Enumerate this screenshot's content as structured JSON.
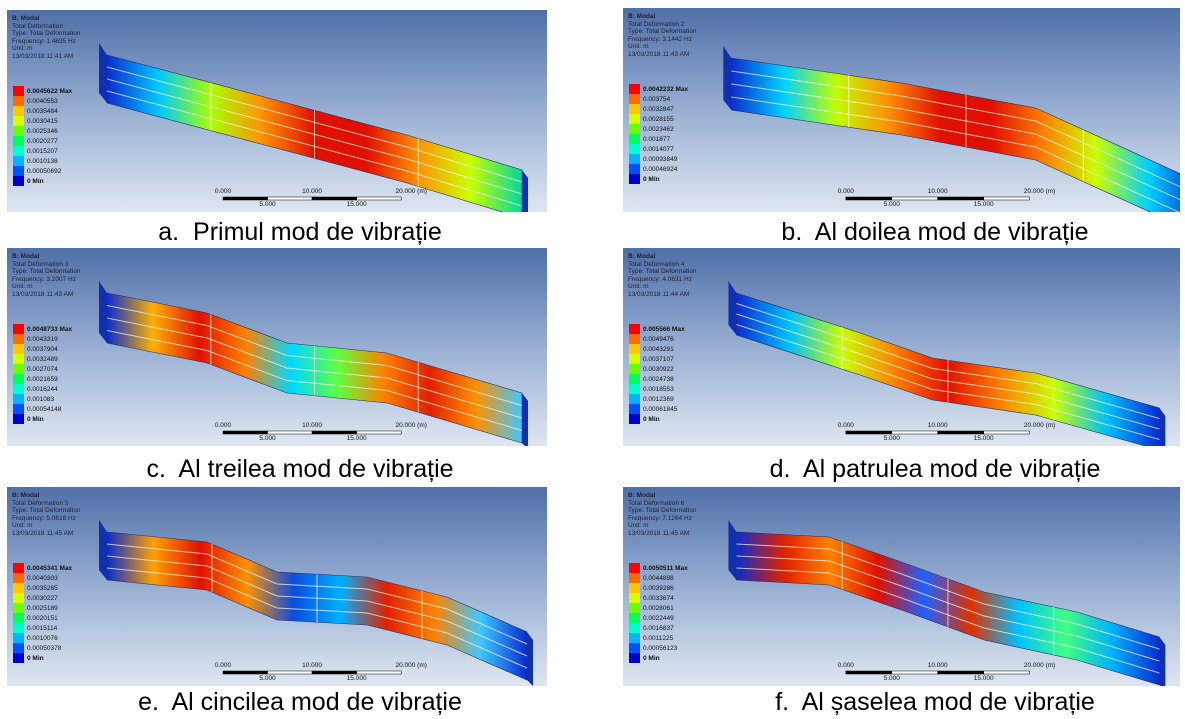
{
  "panels": [
    {
      "title": "B: Modal",
      "lines": [
        "Total Deformation",
        "Type: Total Deformation",
        "Frequency: 1.4695 Hz",
        "Unit: m",
        "13/03/2018 11:41 AM"
      ],
      "legend": [
        "0.0045622 Max",
        "0.0040553",
        "0.0035484",
        "0.0030415",
        "0.0025346",
        "0.0020277",
        "0.0015207",
        "0.0010138",
        "0.00050692",
        "0 Min"
      ],
      "scale_top": [
        "0.000",
        "10.000",
        "20.000 (m)"
      ],
      "scale_bottom": [
        "5.000",
        "15.000"
      ],
      "caption": "a.  Primul mod de vibrație"
    },
    {
      "title": "B: Modal",
      "lines": [
        "Total Deformation 2",
        "Type: Total Deformation",
        "Frequency: 3.1442 Hz",
        "Unit: m",
        "13/03/2018 11:43 AM"
      ],
      "legend": [
        "0.0042232 Max",
        "0.003754",
        "0.0032847",
        "0.0028155",
        "0.0023462",
        "0.001877",
        "0.0014077",
        "0.00093849",
        "0.00046924",
        "0 Min"
      ],
      "scale_top": [
        "0.000",
        "10.000",
        "20.000 (m)"
      ],
      "scale_bottom": [
        "5.000",
        "15.000"
      ],
      "caption": "b.  Al doilea mod de vibrație"
    },
    {
      "title": "B: Modal",
      "lines": [
        "Total Deformation 3",
        "Type: Total Deformation",
        "Frequency: 3.2007 Hz",
        "Unit: m",
        "13/03/2018 11:43 AM"
      ],
      "legend": [
        "0.0048733 Max",
        "0.0043319",
        "0.0037904",
        "0.0032489",
        "0.0027074",
        "0.0021659",
        "0.0016244",
        "0.001083",
        "0.00054148",
        "0 Min"
      ],
      "scale_top": [
        "0.000",
        "10.000",
        "20.000 (m)"
      ],
      "scale_bottom": [
        "5.000",
        "15.000"
      ],
      "caption": "c.  Al treilea mod de vibrație"
    },
    {
      "title": "B: Modal",
      "lines": [
        "Total Deformation 4",
        "Type: Total Deformation",
        "Frequency: 4.0631 Hz",
        "Unit: m",
        "13/03/2018 11:44 AM"
      ],
      "legend": [
        "0.005566 Max",
        "0.0049476",
        "0.0043291",
        "0.0037107",
        "0.0030922",
        "0.0024738",
        "0.0018553",
        "0.0012369",
        "0.00061845",
        "0 Min"
      ],
      "scale_top": [
        "0.000",
        "10.000",
        "20.000 (m)"
      ],
      "scale_bottom": [
        "5.000",
        "15.000"
      ],
      "caption": "d.  Al patrulea mod de vibrație"
    },
    {
      "title": "B: Modal",
      "lines": [
        "Total Deformation 5",
        "Type: Total Deformation",
        "Frequency: 5.0618 Hz",
        "Unit: m",
        "13/03/2018 11:45 AM"
      ],
      "legend": [
        "0.0045341 Max",
        "0.0040303",
        "0.0035265",
        "0.0030227",
        "0.0025189",
        "0.0020151",
        "0.0015114",
        "0.0010076",
        "0.00050378",
        "0 Min"
      ],
      "scale_top": [
        "0.000",
        "10.000",
        "20.000 (m)"
      ],
      "scale_bottom": [
        "5.000",
        "15.000"
      ],
      "caption": "e.  Al cincilea mod de vibrație"
    },
    {
      "title": "B: Modal",
      "lines": [
        "Total Deformation 6",
        "Type: Total Deformation",
        "Frequency: 7.1264 Hz",
        "Unit: m",
        "13/03/2018 11:45 AM"
      ],
      "legend": [
        "0.0050511 Max",
        "0.0044898",
        "0.0039286",
        "0.0033674",
        "0.0028061",
        "0.0022449",
        "0.0016837",
        "0.0011225",
        "0.00056123",
        "0 Min"
      ],
      "scale_top": [
        "0.000",
        "10.000",
        "20.000 (m)"
      ],
      "scale_bottom": [
        "5.000",
        "15.000"
      ],
      "caption": "f.  Al șaselea mod de vibrație"
    }
  ]
}
